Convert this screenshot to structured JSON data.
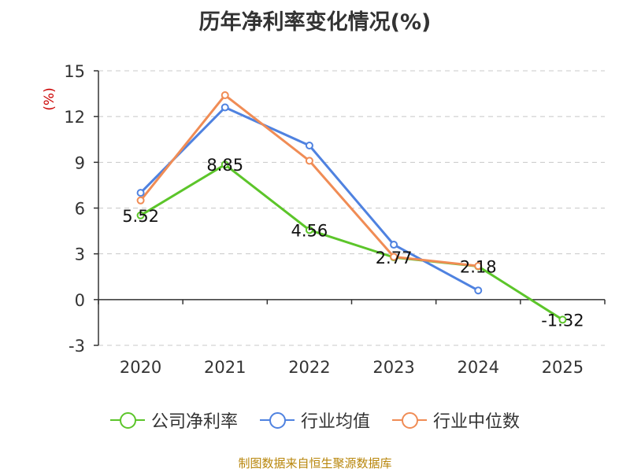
{
  "chart_data": {
    "type": "line",
    "title": "历年净利率变化情况(%)",
    "ylabel": "(%)",
    "categories": [
      "2020",
      "2021",
      "2022",
      "2023",
      "2024",
      "2025"
    ],
    "y_ticks": [
      "15",
      "12",
      "9",
      "6",
      "3",
      "0",
      "-3"
    ],
    "ylim": [
      -3,
      15
    ],
    "grid": true,
    "legend_position": "bottom",
    "series": [
      {
        "name": "公司净利率",
        "color": "#5cc52a",
        "values": [
          5.52,
          8.85,
          4.56,
          2.77,
          2.18,
          -1.32
        ],
        "labels": [
          "5.52",
          "8.85",
          "4.56",
          "2.77",
          "2.18",
          "-1.32"
        ]
      },
      {
        "name": "行业均值",
        "color": "#4f82e0",
        "values": [
          7.0,
          12.6,
          10.1,
          3.6,
          0.6,
          null
        ]
      },
      {
        "name": "行业中位数",
        "color": "#f08c55",
        "values": [
          6.5,
          13.4,
          9.1,
          2.8,
          2.2,
          null
        ]
      }
    ]
  },
  "source": "制图数据来自恒生聚源数据库"
}
